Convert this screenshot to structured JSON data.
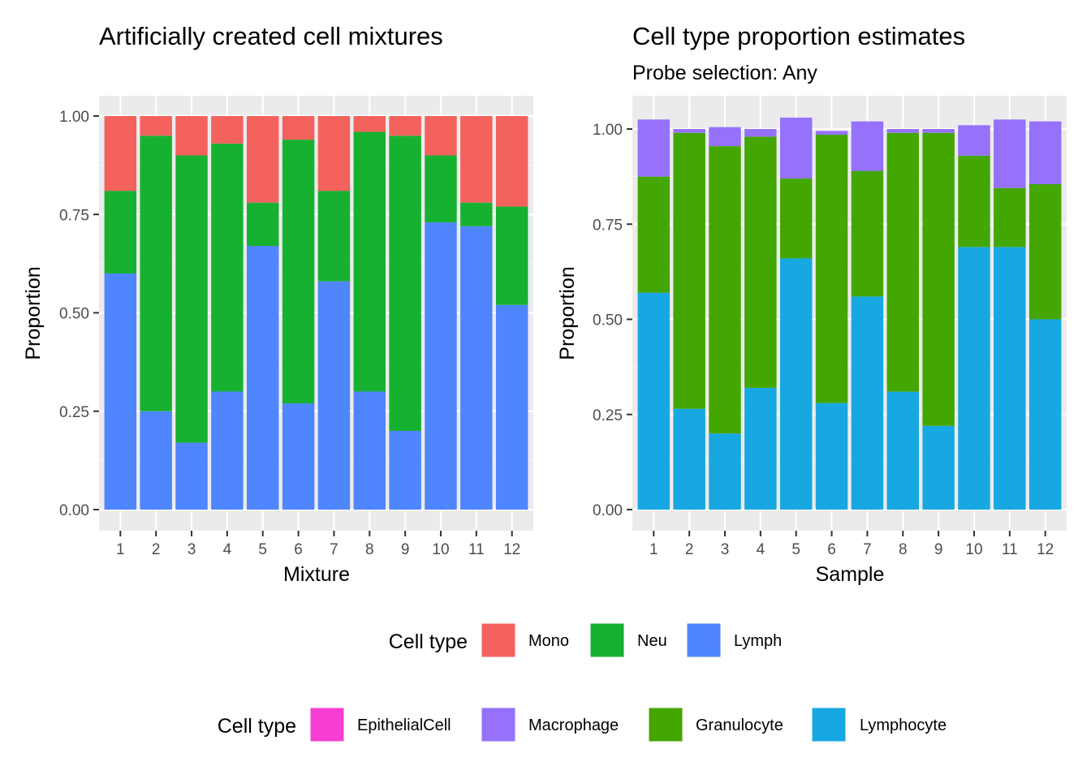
{
  "chart_data": [
    {
      "type": "bar",
      "stacked": true,
      "title": "Artificially created cell mixtures",
      "subtitle": "",
      "xlabel": "Mixture",
      "ylabel": "Proportion",
      "ylim": [
        0,
        1
      ],
      "yticks": [
        "0.00",
        "0.25",
        "0.50",
        "0.75",
        "1.00"
      ],
      "categories": [
        "1",
        "2",
        "3",
        "4",
        "5",
        "6",
        "7",
        "8",
        "9",
        "10",
        "11",
        "12"
      ],
      "grid": true,
      "series": [
        {
          "name": "Lymph",
          "color": "#4f86fe",
          "values": [
            0.6,
            0.25,
            0.17,
            0.3,
            0.67,
            0.27,
            0.58,
            0.3,
            0.2,
            0.73,
            0.72,
            0.52
          ]
        },
        {
          "name": "Neu",
          "color": "#17b131",
          "values": [
            0.21,
            0.7,
            0.73,
            0.63,
            0.11,
            0.67,
            0.23,
            0.66,
            0.75,
            0.17,
            0.06,
            0.25
          ]
        },
        {
          "name": "Mono",
          "color": "#f4625d",
          "values": [
            0.19,
            0.05,
            0.1,
            0.07,
            0.22,
            0.06,
            0.19,
            0.04,
            0.05,
            0.1,
            0.22,
            0.23
          ]
        }
      ]
    },
    {
      "type": "bar",
      "stacked": true,
      "title": "Cell type proportion estimates",
      "subtitle": "Probe selection: Any",
      "xlabel": "Sample",
      "ylabel": "Proportion",
      "ylim": [
        0,
        1.07
      ],
      "yticks": [
        "0.00",
        "0.25",
        "0.50",
        "0.75",
        "1.00"
      ],
      "categories": [
        "1",
        "2",
        "3",
        "4",
        "5",
        "6",
        "7",
        "8",
        "9",
        "10",
        "11",
        "12"
      ],
      "grid": true,
      "series": [
        {
          "name": "Lymphocyte",
          "color": "#17a8e2",
          "values": [
            0.57,
            0.265,
            0.2,
            0.32,
            0.66,
            0.28,
            0.56,
            0.31,
            0.22,
            0.69,
            0.69,
            0.5
          ]
        },
        {
          "name": "Granulocyte",
          "color": "#44a600",
          "values": [
            0.305,
            0.725,
            0.755,
            0.66,
            0.21,
            0.705,
            0.33,
            0.68,
            0.77,
            0.24,
            0.155,
            0.355
          ]
        },
        {
          "name": "Macrophage",
          "color": "#9571fc",
          "values": [
            0.15,
            0.01,
            0.05,
            0.02,
            0.16,
            0.01,
            0.13,
            0.01,
            0.01,
            0.08,
            0.18,
            0.165
          ]
        },
        {
          "name": "EpithelialCell",
          "color": "#f73fd3",
          "values": [
            0,
            0,
            0,
            0,
            0,
            0,
            0,
            0,
            0,
            0,
            0,
            0
          ]
        }
      ]
    }
  ],
  "legends": [
    {
      "title": "Cell type",
      "items": [
        "Mono",
        "Neu",
        "Lymph"
      ],
      "colors": [
        "#f4625d",
        "#17b131",
        "#4f86fe"
      ]
    },
    {
      "title": "Cell type",
      "items": [
        "EpithelialCell",
        "Macrophage",
        "Granulocyte",
        "Lymphocyte"
      ],
      "colors": [
        "#f73fd3",
        "#9571fc",
        "#44a600",
        "#17a8e2"
      ]
    }
  ]
}
